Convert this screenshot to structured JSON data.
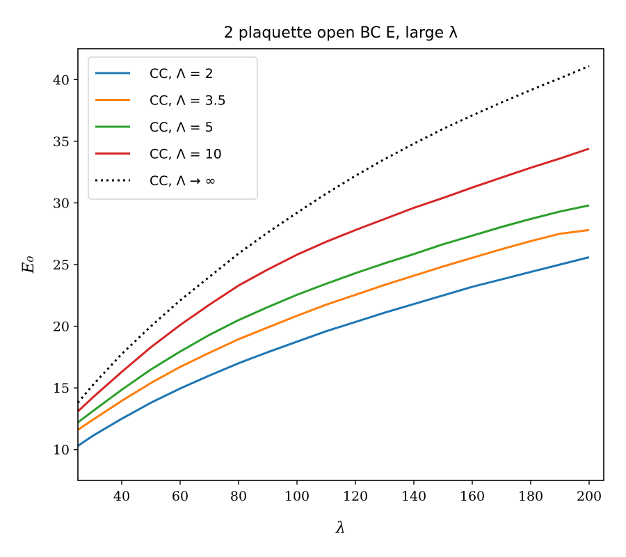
{
  "chart_data": {
    "type": "line",
    "title": "2 plaquette open BC E, large λ",
    "xlabel": "λ",
    "ylabel": "E₀",
    "xlim": [
      25,
      205
    ],
    "ylim": [
      7.5,
      42.5
    ],
    "x_ticks": [
      40,
      60,
      80,
      100,
      120,
      140,
      160,
      180,
      200
    ],
    "y_ticks": [
      10,
      15,
      20,
      25,
      30,
      35,
      40
    ],
    "grid": false,
    "legend_position": "top-left",
    "x": [
      25,
      30,
      40,
      50,
      60,
      70,
      80,
      90,
      100,
      110,
      120,
      130,
      140,
      150,
      160,
      170,
      180,
      190,
      200
    ],
    "series": [
      {
        "name": "CC, Λ = 2",
        "color": "#1f77b4",
        "style": "solid",
        "values": [
          10.3,
          11.1,
          12.5,
          13.8,
          14.95,
          16.0,
          17.0,
          17.9,
          18.75,
          19.6,
          20.35,
          21.1,
          21.8,
          22.5,
          23.2,
          23.8,
          24.4,
          25.0,
          25.6
        ]
      },
      {
        "name": "CC, Λ = 3.5",
        "color": "#ff7f0e",
        "style": "solid",
        "values": [
          11.6,
          12.4,
          13.95,
          15.4,
          16.7,
          17.85,
          18.95,
          19.9,
          20.85,
          21.75,
          22.55,
          23.35,
          24.1,
          24.85,
          25.55,
          26.25,
          26.9,
          27.5,
          27.8
        ]
      },
      {
        "name": "CC, Λ = 5",
        "color": "#2ca02c",
        "style": "solid",
        "values": [
          12.2,
          13.1,
          14.85,
          16.5,
          17.95,
          19.3,
          20.5,
          21.55,
          22.55,
          23.45,
          24.3,
          25.1,
          25.85,
          26.65,
          27.35,
          28.05,
          28.7,
          29.3,
          29.8
        ]
      },
      {
        "name": "CC, Λ = 10",
        "color": "#d62728",
        "style": "solid",
        "values": [
          13.1,
          14.2,
          16.3,
          18.3,
          20.1,
          21.75,
          23.3,
          24.6,
          25.8,
          26.85,
          27.8,
          28.7,
          29.6,
          30.4,
          31.25,
          32.05,
          32.85,
          33.6,
          34.4
        ]
      },
      {
        "name": "CC, Λ → ∞",
        "color": "#000000",
        "style": "dotted",
        "values": [
          13.8,
          15.2,
          17.75,
          20.0,
          22.1,
          24.0,
          25.9,
          27.6,
          29.2,
          30.75,
          32.2,
          33.55,
          34.8,
          36.0,
          37.1,
          38.15,
          39.15,
          40.1,
          41.1
        ]
      }
    ]
  }
}
